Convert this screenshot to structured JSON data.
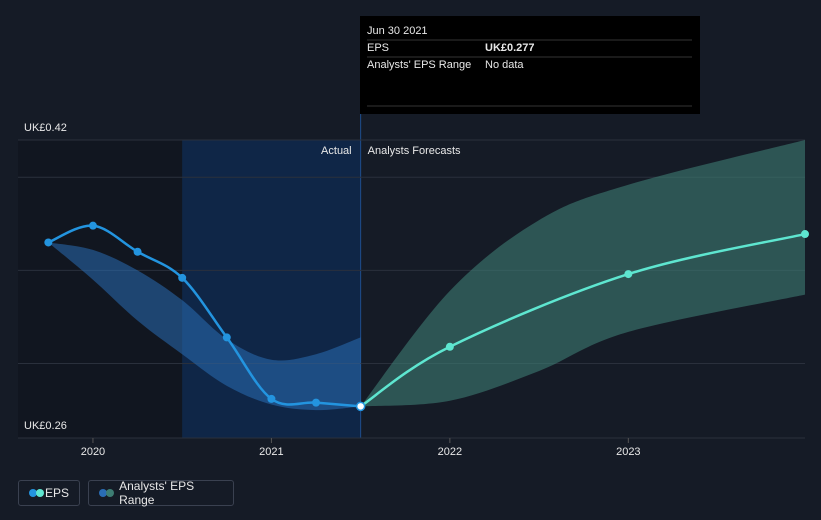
{
  "chart_data": {
    "type": "line",
    "tooltip": {
      "date": "Jun 30 2021",
      "rows": [
        {
          "label": "EPS",
          "value": "UK£0.277"
        },
        {
          "label": "Analysts' EPS Range",
          "value": "No data"
        }
      ]
    },
    "actual_label": "Actual",
    "forecast_label": "Analysts Forecasts",
    "split": [
      2020.5,
      2021.5
    ],
    "xlim": [
      2019.58,
      2023.99
    ],
    "xticks": [
      2020,
      2021,
      2022,
      2023
    ],
    "ylim": [
      0.26,
      0.42
    ],
    "yticks": [
      {
        "value": 0.26,
        "label": "UK£0.26"
      },
      {
        "value": 0.42,
        "label": "UK£0.42"
      }
    ],
    "gridlines": [
      0.3,
      0.35,
      0.4,
      0.42
    ],
    "series": [
      {
        "name": "EPS",
        "color": "#2394df",
        "forecast_color": "#5ee6d0",
        "x": [
          2019.75,
          2020.0,
          2020.25,
          2020.5,
          2020.75,
          2021.0,
          2021.25,
          2021.5,
          2022.0,
          2023.0,
          2023.99
        ],
        "values": [
          0.365,
          0.374,
          0.36,
          0.346,
          0.314,
          0.281,
          0.279,
          0.277,
          0.309,
          0.348,
          0.3695
        ]
      },
      {
        "name": "Analysts' EPS Range",
        "color": "#2a6db5",
        "forecast_color": "#3d7d73",
        "ranges": [
          {
            "x": [
              2019.75,
              2020.0,
              2020.25,
              2020.5,
              2020.75,
              2021.0,
              2021.25,
              2021.5
            ],
            "upper": [
              0.365,
              0.361,
              0.35,
              0.334,
              0.313,
              0.302,
              0.305,
              0.314
            ],
            "lower": [
              0.365,
              0.345,
              0.323,
              0.305,
              0.288,
              0.278,
              0.275,
              0.277
            ]
          },
          {
            "x": [
              2021.5,
              2022.0,
              2022.5,
              2023.0,
              2023.99
            ],
            "upper": [
              0.277,
              0.339,
              0.377,
              0.396,
              0.42
            ],
            "lower": [
              0.277,
              0.28,
              0.296,
              0.317,
              0.337
            ]
          }
        ]
      }
    ]
  }
}
